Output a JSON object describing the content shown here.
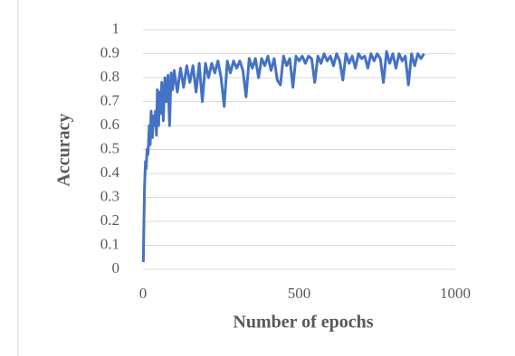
{
  "chart_data": {
    "type": "line",
    "x_label": "Number of epochs",
    "y_label": "Accuracy",
    "xlim": [
      0,
      1000
    ],
    "xticks": [
      0,
      500,
      1000
    ],
    "ylim": [
      0,
      1
    ],
    "yticks": [
      0,
      0.1,
      0.2,
      0.3,
      0.4,
      0.5,
      0.6,
      0.7,
      0.8,
      0.9,
      1
    ],
    "grid": true,
    "x": [
      1,
      3,
      5,
      8,
      10,
      13,
      16,
      20,
      23,
      26,
      30,
      33,
      36,
      40,
      43,
      46,
      50,
      53,
      56,
      60,
      65,
      70,
      75,
      80,
      85,
      90,
      95,
      100,
      110,
      120,
      130,
      140,
      150,
      160,
      170,
      180,
      190,
      200,
      210,
      220,
      230,
      240,
      250,
      260,
      270,
      280,
      290,
      300,
      310,
      320,
      330,
      340,
      350,
      360,
      370,
      380,
      390,
      400,
      410,
      420,
      430,
      440,
      450,
      460,
      470,
      480,
      490,
      500,
      510,
      520,
      530,
      540,
      550,
      560,
      570,
      580,
      590,
      600,
      610,
      620,
      630,
      640,
      650,
      660,
      670,
      680,
      690,
      700,
      710,
      720,
      730,
      740,
      750,
      760,
      770,
      780,
      790,
      800,
      810,
      820,
      830,
      840,
      850,
      860,
      870,
      880,
      890,
      900
    ],
    "series": [
      {
        "color": "#4472c4",
        "values": [
          0.03,
          0.2,
          0.35,
          0.45,
          0.42,
          0.5,
          0.48,
          0.6,
          0.52,
          0.66,
          0.55,
          0.64,
          0.6,
          0.66,
          0.56,
          0.75,
          0.6,
          0.74,
          0.65,
          0.78,
          0.62,
          0.8,
          0.7,
          0.81,
          0.6,
          0.82,
          0.75,
          0.83,
          0.74,
          0.84,
          0.76,
          0.85,
          0.78,
          0.85,
          0.74,
          0.86,
          0.7,
          0.86,
          0.8,
          0.86,
          0.82,
          0.87,
          0.8,
          0.68,
          0.87,
          0.82,
          0.87,
          0.84,
          0.87,
          0.83,
          0.72,
          0.88,
          0.84,
          0.88,
          0.8,
          0.88,
          0.85,
          0.89,
          0.83,
          0.88,
          0.79,
          0.77,
          0.89,
          0.85,
          0.88,
          0.76,
          0.89,
          0.87,
          0.89,
          0.86,
          0.89,
          0.88,
          0.78,
          0.89,
          0.86,
          0.9,
          0.87,
          0.89,
          0.85,
          0.9,
          0.87,
          0.79,
          0.9,
          0.86,
          0.89,
          0.84,
          0.9,
          0.88,
          0.89,
          0.84,
          0.9,
          0.87,
          0.9,
          0.88,
          0.78,
          0.91,
          0.86,
          0.9,
          0.84,
          0.9,
          0.87,
          0.89,
          0.77,
          0.9,
          0.85,
          0.9,
          0.88,
          0.9
        ]
      }
    ]
  }
}
